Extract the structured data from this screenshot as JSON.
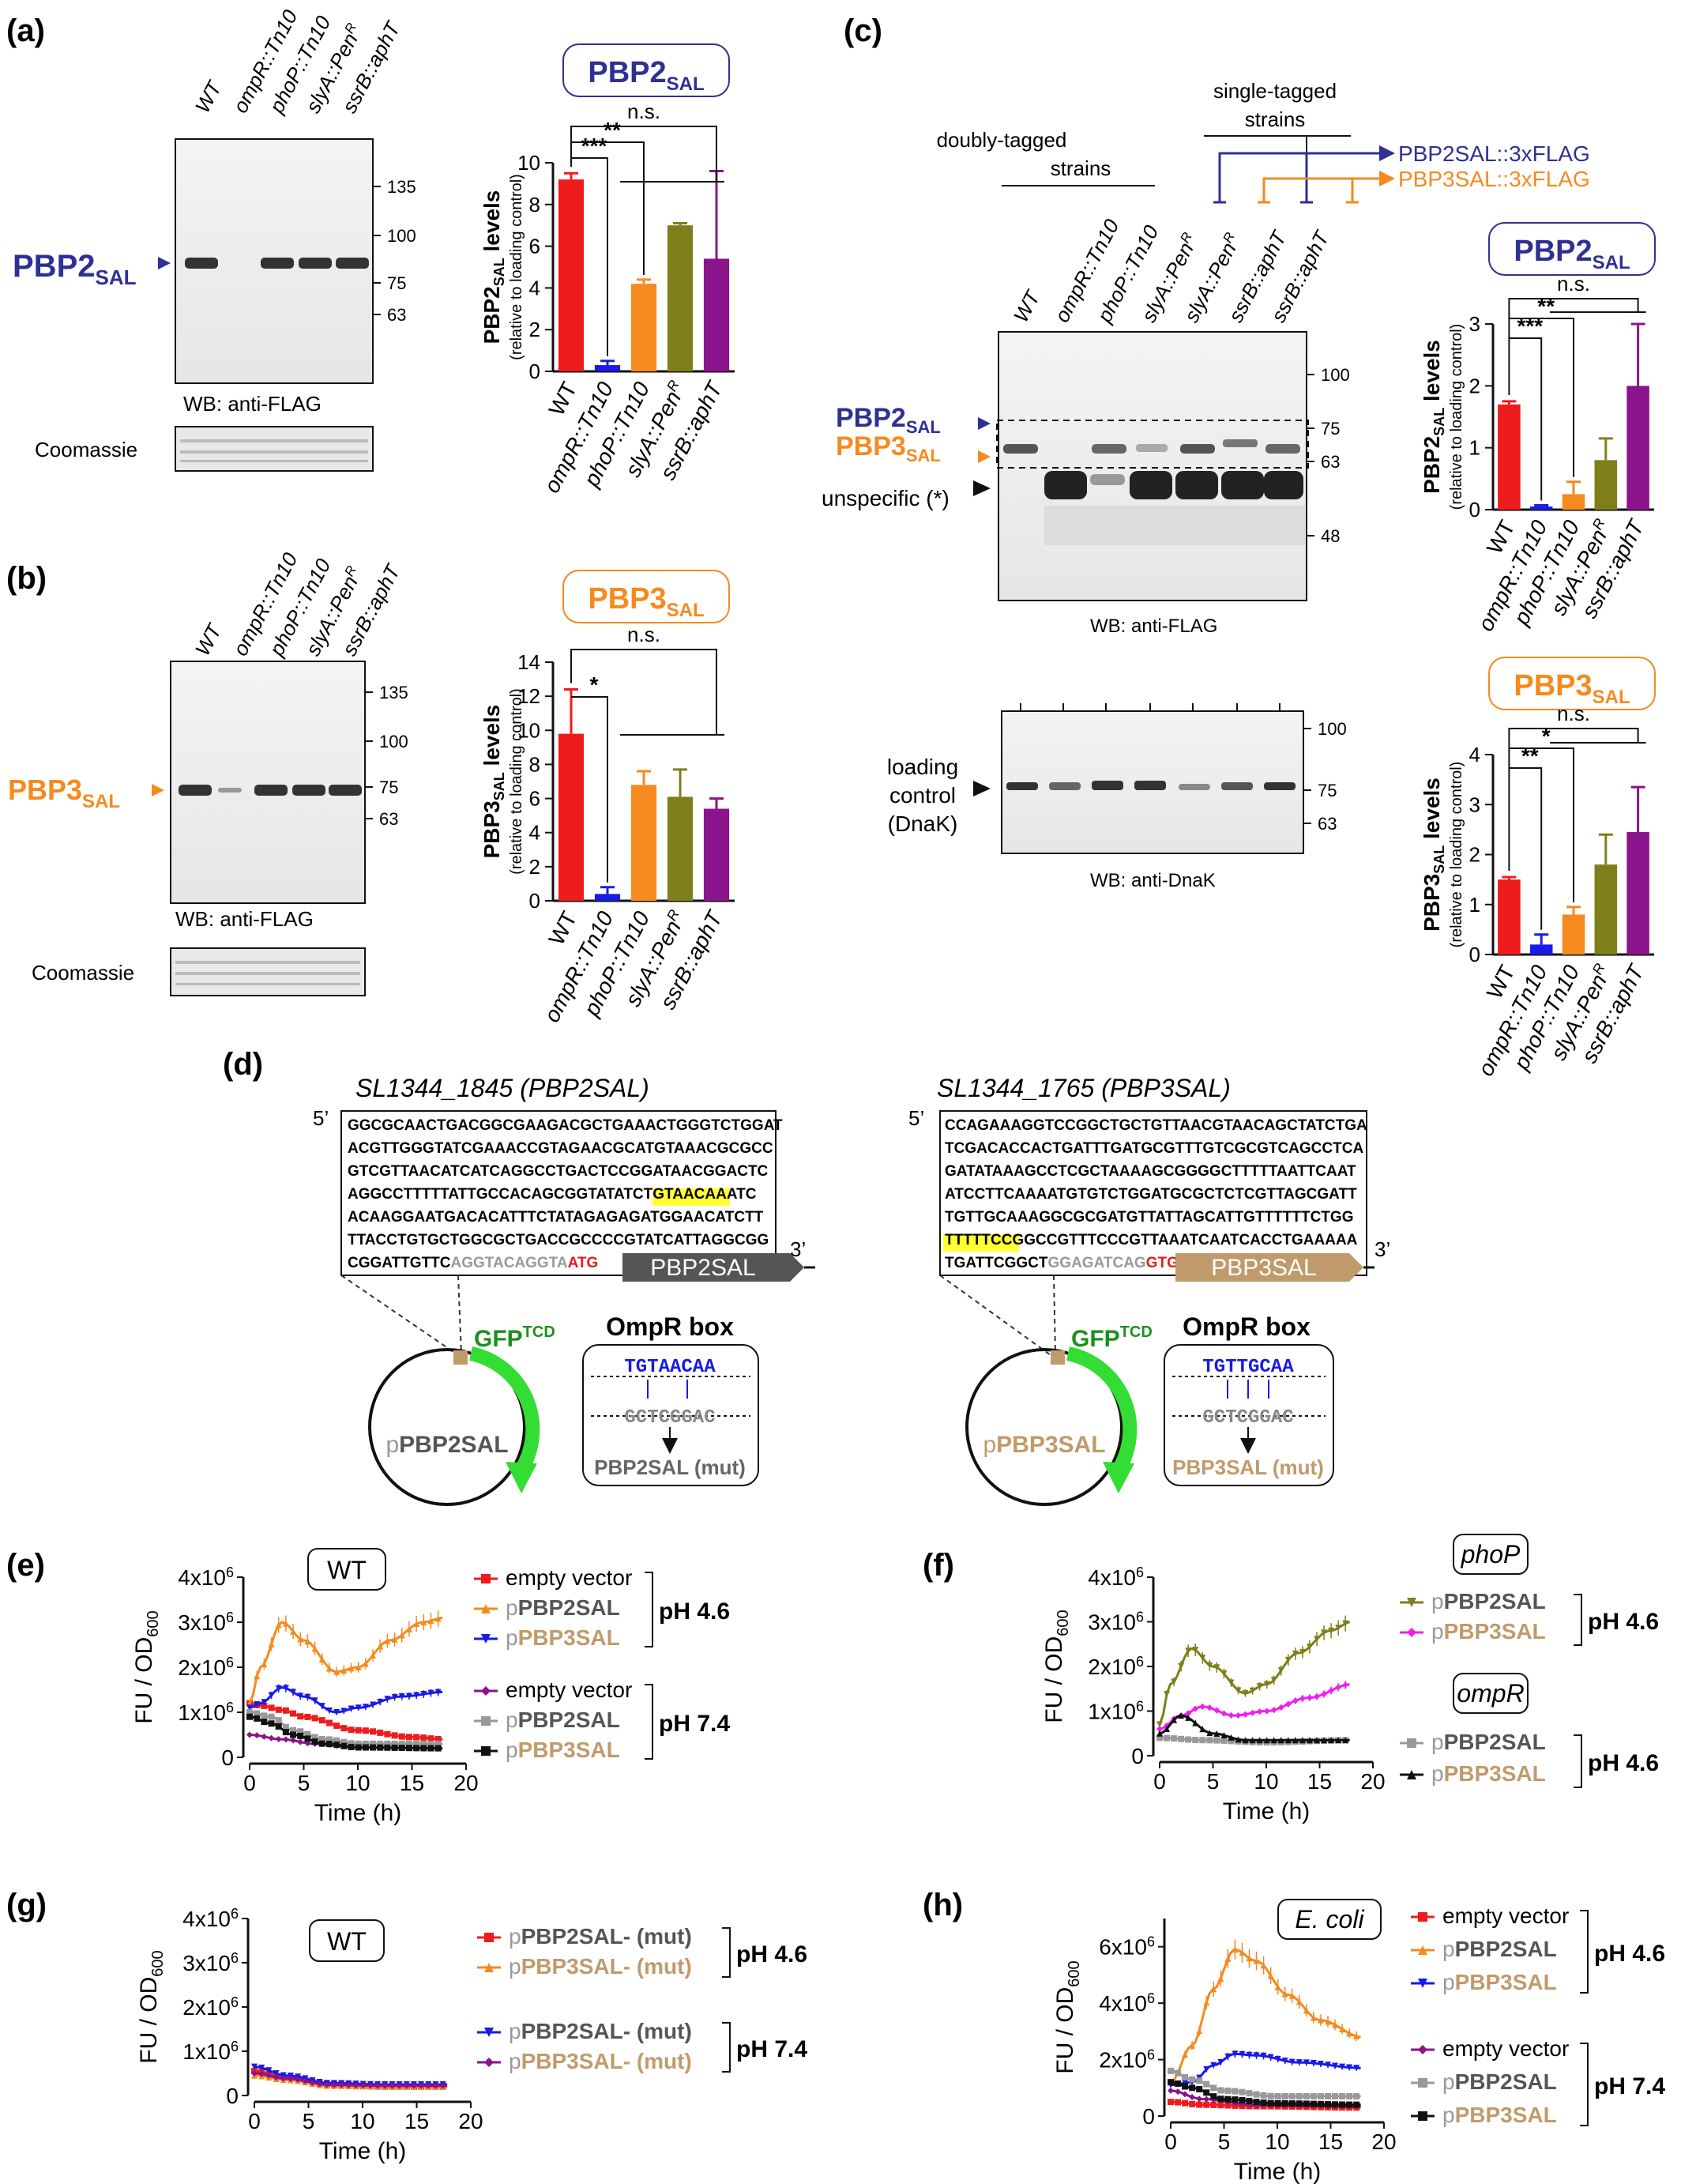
{
  "panel_labels": [
    "(a)",
    "(b)",
    "(c)",
    "(d)",
    "(e)",
    "(f)",
    "(g)",
    "(h)"
  ],
  "lanes_ab": [
    "WT",
    "ompR::Tn10",
    "phoP::Tn10",
    "slyA::Pen",
    "ssrB::aphT"
  ],
  "lanes_c": [
    "WT",
    "ompR::Tn10",
    "phoP::Tn10",
    "slyA::Pen",
    "slyA::Pen",
    "ssrB::aphT",
    "ssrB::aphT"
  ],
  "superscript_R": "R",
  "wb_anti_flag": "WB: anti-FLAG",
  "wb_anti_dnak": "WB: anti-DnaK",
  "coomassie": "Coomassie",
  "pbp2": "PBP2",
  "pbp3": "PBP3",
  "sal": "SAL",
  "ns": "n.s.",
  "sig": {
    "three": "***",
    "two": "**",
    "one": "*"
  },
  "ylabel_pbp2": "PBP2SAL levels",
  "ylabel_pbp3": "PBP3SAL levels",
  "ylabel_sub": "(relative to loading control)",
  "mw_a": [
    "135",
    "100",
    "75",
    "63"
  ],
  "mw_c_flag": [
    "100",
    "75",
    "63",
    "48"
  ],
  "mw_c_dnak": [
    "100",
    "75",
    "63"
  ],
  "c_headers": {
    "doubly": "doubly-tagged",
    "strains": "strains",
    "single": "single-tagged",
    "pbp2_flag": "PBP2SAL::3xFLAG",
    "pbp3_flag": "PBP3SAL::3xFLAG",
    "unspecific": "unspecific (*)",
    "loading1": "loading",
    "loading2": "control",
    "loading3": "(DnaK)"
  },
  "d": {
    "title1": "SL1344_1845 (PBP2SAL)",
    "title2": "SL1344_1765 (PBP3SAL)",
    "five": "5’",
    "three": "3’",
    "seq1": [
      "GGCGCAACTGACGGCGAAGACGCTGAAACTGGGTCTGGAT",
      "ACGTTGGGTATCGAAACCGTAGAACGCATGTAAACGCGCC",
      "GTCGTTAACATCATCAGGCCTGACTCCGGATAACGGACTC",
      "AGGCCTTTTTATTGCCACAGCGGTATATCTGTAACAAATC",
      "ACAAGGAATGACACATTTCTATAGAGAGATGGAACATCTT",
      "TTACCTGTGCTGGCGCTGACCGCCCCGTATCATTAGGCGG",
      "CGGATTGTTC"
    ],
    "seq1_tail": "AGGTACAGGTA",
    "seq1_start": "ATG",
    "gene1": "PBP2SAL",
    "seq2": [
      "CCAGAAAGGTCCGGCTGCTGTTAACGTAACAGCTATCTGA",
      "TCGACACCACTGATTTGATGCGTTTGTCGCGTCAGCCTCA",
      "GATATAAAGCCTCGCTAAAAGCGGGGCTTTTTAATTCAAT",
      "ATCCTTCAAAATGTGTCTGGATGCGCTCTCGTTAGCGATT",
      "TGTTGCAAAGGCGCGATGTTATTAGCATTGTTTTTTCTGG",
      "TTTTTCCGGCCGTTTCCCGTTAAATCAATCACCTGAAAAA",
      "TGATTCGGCT"
    ],
    "seq2_tail": "GGAGATCAG",
    "seq2_start": "GTG",
    "gene2": "PBP3SAL",
    "gfp": "GFP",
    "tcd": "TCD",
    "plasmid1": "PBP2SAL",
    "plasmid2": "PBP3SAL",
    "p": "p",
    "ompr_box": "OmpR box",
    "box1_top": "TGTAACAA",
    "box1_mid": "GCTCGGAC",
    "box1_mut": "PBP2SAL (mut)",
    "box2_top": "TGTTGCAA",
    "box2_mid": "GCTCGGAC",
    "box2_mut": "PBP3SAL (mut)"
  },
  "curves": {
    "time": "Time (h)",
    "fu": "FU / OD",
    "od": "600",
    "legend_empty": "empty vector",
    "legend_pbp2": "pPBP2SAL",
    "legend_pbp3": "pPBP3SAL",
    "legend_pbp2mut": "pPBP2SAL- (mut)",
    "legend_pbp3mut": "pPBP3SAL- (mut)",
    "ph46": "pH 4.6",
    "ph74": "pH 7.4",
    "box_wt": "WT",
    "box_phop": "phoP",
    "box_ompr": "ompR",
    "box_ecoli": "E. coli"
  },
  "colors": {
    "red": "#ee1c1c",
    "blue": "#1a1ae6",
    "orange": "#f58a1f",
    "olive": "#7f7f1a",
    "purple": "#8b138b",
    "navy": "#2e3192",
    "tan": "#c19a6b",
    "green": "#2fd82f",
    "magenta": "#f01ef0",
    "gray": "#999999",
    "black": "#111111"
  },
  "chart_data": [
    {
      "type": "bar",
      "title": "PBP2SAL",
      "categories": [
        "WT",
        "ompR::Tn10",
        "phoP::Tn10",
        "slyA::PenR",
        "ssrB::aphT"
      ],
      "values": [
        9.2,
        0.3,
        4.2,
        7.0,
        5.4
      ],
      "errors": [
        0.3,
        0.2,
        0.2,
        0.1,
        4.2
      ],
      "ylim": [
        0,
        10
      ],
      "yticks": [
        0,
        2,
        4,
        6,
        8,
        10
      ]
    },
    {
      "type": "bar",
      "title": "PBP3SAL",
      "categories": [
        "WT",
        "ompR::Tn10",
        "phoP::Tn10",
        "slyA::PenR",
        "ssrB::aphT"
      ],
      "values": [
        9.8,
        0.4,
        6.8,
        6.1,
        5.4
      ],
      "errors": [
        2.6,
        0.4,
        0.8,
        1.6,
        0.6
      ],
      "ylim": [
        0,
        14
      ],
      "yticks": [
        0,
        2,
        4,
        6,
        8,
        10,
        12,
        14
      ]
    },
    {
      "type": "bar",
      "title": "PBP2SAL",
      "categories": [
        "WT",
        "ompR::Tn10",
        "phoP::Tn10",
        "slyA::PenR",
        "ssrB::aphT"
      ],
      "values": [
        1.7,
        0.05,
        0.25,
        0.8,
        2.0
      ],
      "errors": [
        0.05,
        0.02,
        0.2,
        0.35,
        1.0
      ],
      "ylim": [
        0,
        3
      ],
      "yticks": [
        0,
        1,
        2,
        3
      ]
    },
    {
      "type": "bar",
      "title": "PBP3SAL",
      "categories": [
        "WT",
        "ompR::Tn10",
        "phoP::Tn10",
        "slyA::PenR",
        "ssrB::aphT"
      ],
      "values": [
        1.5,
        0.2,
        0.8,
        1.8,
        2.45
      ],
      "errors": [
        0.05,
        0.2,
        0.15,
        0.6,
        0.9
      ],
      "ylim": [
        0,
        4
      ],
      "yticks": [
        0,
        1,
        2,
        3,
        4
      ]
    },
    {
      "type": "line",
      "panel": "e",
      "xlim": [
        0,
        20
      ],
      "ylim": [
        0,
        4000000
      ],
      "series": [
        {
          "name": "empty vector pH 4.6",
          "points": [
            [
              0,
              1200000.0
            ],
            [
              1,
              1150000.0
            ],
            [
              3,
              1050000.0
            ],
            [
              5,
              900000.0
            ],
            [
              10,
              600000.0
            ],
            [
              15,
              450000.0
            ],
            [
              18,
              400000.0
            ]
          ]
        },
        {
          "name": "pPBP2SAL pH 4.6",
          "points": [
            [
              0,
              1200000.0
            ],
            [
              1,
              2000000.0
            ],
            [
              3,
              3000000.0
            ],
            [
              5,
              2600000.0
            ],
            [
              8,
              1900000.0
            ],
            [
              10,
              2000000.0
            ],
            [
              13,
              2600000.0
            ],
            [
              16,
              3000000.0
            ],
            [
              18,
              3100000.0
            ]
          ]
        },
        {
          "name": "pPBP3SAL pH 4.6",
          "points": [
            [
              0,
              1100000.0
            ],
            [
              1,
              1200000.0
            ],
            [
              3,
              1550000.0
            ],
            [
              5,
              1350000.0
            ],
            [
              8,
              1000000.0
            ],
            [
              10,
              1100000.0
            ],
            [
              14,
              1350000.0
            ],
            [
              18,
              1450000.0
            ]
          ]
        },
        {
          "name": "empty vector pH 7.4",
          "points": [
            [
              0,
              500000.0
            ],
            [
              3,
              400000.0
            ],
            [
              6,
              300000.0
            ],
            [
              10,
              220000.0
            ],
            [
              18,
              200000.0
            ]
          ]
        },
        {
          "name": "pPBP2SAL pH 7.4",
          "points": [
            [
              0,
              1000000.0
            ],
            [
              2,
              900000.0
            ],
            [
              4,
              600000.0
            ],
            [
              7,
              400000.0
            ],
            [
              10,
              300000.0
            ],
            [
              18,
              300000.0
            ]
          ]
        },
        {
          "name": "pPBP3SAL pH 7.4",
          "points": [
            [
              0,
              900000.0
            ],
            [
              2,
              750000.0
            ],
            [
              4,
              500000.0
            ],
            [
              7,
              300000.0
            ],
            [
              10,
              220000.0
            ],
            [
              18,
              200000.0
            ]
          ]
        }
      ]
    },
    {
      "type": "line",
      "panel": "f",
      "xlim": [
        0,
        20
      ],
      "ylim": [
        0,
        4000000
      ],
      "series": [
        {
          "name": "phoP pPBP2SAL pH 4.6",
          "points": [
            [
              0,
              700000.0
            ],
            [
              1,
              1600000.0
            ],
            [
              3,
              2400000.0
            ],
            [
              5,
              2000000.0
            ],
            [
              8,
              1400000.0
            ],
            [
              10,
              1600000.0
            ],
            [
              13,
              2300000.0
            ],
            [
              16,
              2800000.0
            ],
            [
              18,
              3000000.0
            ]
          ]
        },
        {
          "name": "phoP pPBP3SAL pH 4.6",
          "points": [
            [
              0,
              600000.0
            ],
            [
              2,
              900000.0
            ],
            [
              4,
              1100000.0
            ],
            [
              7,
              900000.0
            ],
            [
              10,
              1000000.0
            ],
            [
              14,
              1300000.0
            ],
            [
              18,
              1600000.0
            ]
          ]
        },
        {
          "name": "ompR pPBP2SAL pH 4.6",
          "points": [
            [
              0,
              400000.0
            ],
            [
              4,
              350000.0
            ],
            [
              10,
              300000.0
            ],
            [
              18,
              350000.0
            ]
          ]
        },
        {
          "name": "ompR pPBP3SAL pH 4.6",
          "points": [
            [
              0,
              500000.0
            ],
            [
              2,
              900000.0
            ],
            [
              5,
              500000.0
            ],
            [
              8,
              350000.0
            ],
            [
              12,
              350000.0
            ],
            [
              18,
              350000.0
            ]
          ]
        }
      ]
    },
    {
      "type": "line",
      "panel": "g",
      "xlim": [
        0,
        20
      ],
      "ylim": [
        0,
        4000000
      ],
      "series": [
        {
          "name": "pPBP2SAL- (mut) pH 4.6",
          "points": [
            [
              0,
              550000.0
            ],
            [
              3,
              400000.0
            ],
            [
              7,
              250000.0
            ],
            [
              12,
              200000.0
            ],
            [
              18,
              200000.0
            ]
          ]
        },
        {
          "name": "pPBP3SAL- (mut) pH 4.6",
          "points": [
            [
              0,
              450000.0
            ],
            [
              3,
              350000.0
            ],
            [
              7,
              220000.0
            ],
            [
              12,
              200000.0
            ],
            [
              18,
              200000.0
            ]
          ]
        },
        {
          "name": "pPBP2SAL- (mut) pH 7.4",
          "points": [
            [
              0,
              650000.0
            ],
            [
              3,
              450000.0
            ],
            [
              7,
              280000.0
            ],
            [
              12,
              250000.0
            ],
            [
              18,
              250000.0
            ]
          ]
        },
        {
          "name": "pPBP3SAL- (mut) pH 7.4",
          "points": [
            [
              0,
              500000.0
            ],
            [
              3,
              380000.0
            ],
            [
              7,
              240000.0
            ],
            [
              12,
              220000.0
            ],
            [
              18,
              220000.0
            ]
          ]
        }
      ]
    },
    {
      "type": "line",
      "panel": "h",
      "xlim": [
        0,
        20
      ],
      "ylim": [
        0,
        7000000
      ],
      "series": [
        {
          "name": "empty vector pH 4.6",
          "points": [
            [
              0,
              500000.0
            ],
            [
              3,
              400000.0
            ],
            [
              8,
              350000.0
            ],
            [
              18,
              300000.0
            ]
          ]
        },
        {
          "name": "pPBP2SAL pH 4.6",
          "points": [
            [
              0,
              1200000.0
            ],
            [
              2,
              2500000.0
            ],
            [
              4,
              4500000.0
            ],
            [
              6,
              5900000.0
            ],
            [
              8,
              5500000.0
            ],
            [
              11,
              4300000.0
            ],
            [
              14,
              3400000.0
            ],
            [
              18,
              2800000.0
            ]
          ]
        },
        {
          "name": "pPBP3SAL pH 4.6",
          "points": [
            [
              0,
              1100000.0
            ],
            [
              2,
              1200000.0
            ],
            [
              4,
              1800000.0
            ],
            [
              6,
              2200000.0
            ],
            [
              8,
              2150000.0
            ],
            [
              12,
              1900000.0
            ],
            [
              18,
              1700000.0
            ]
          ]
        },
        {
          "name": "empty vector pH 7.4",
          "points": [
            [
              0,
              900000.0
            ],
            [
              3,
              600000.0
            ],
            [
              8,
              400000.0
            ],
            [
              18,
              350000.0
            ]
          ]
        },
        {
          "name": "pPBP2SAL pH 7.4",
          "points": [
            [
              0,
              1600000.0
            ],
            [
              2,
              1300000.0
            ],
            [
              5,
              900000.0
            ],
            [
              10,
              700000.0
            ],
            [
              18,
              700000.0
            ]
          ]
        },
        {
          "name": "pPBP3SAL pH 7.4",
          "points": [
            [
              0,
              1200000.0
            ],
            [
              2,
              1000000.0
            ],
            [
              5,
              600000.0
            ],
            [
              10,
              450000.0
            ],
            [
              18,
              400000.0
            ]
          ]
        }
      ]
    }
  ]
}
